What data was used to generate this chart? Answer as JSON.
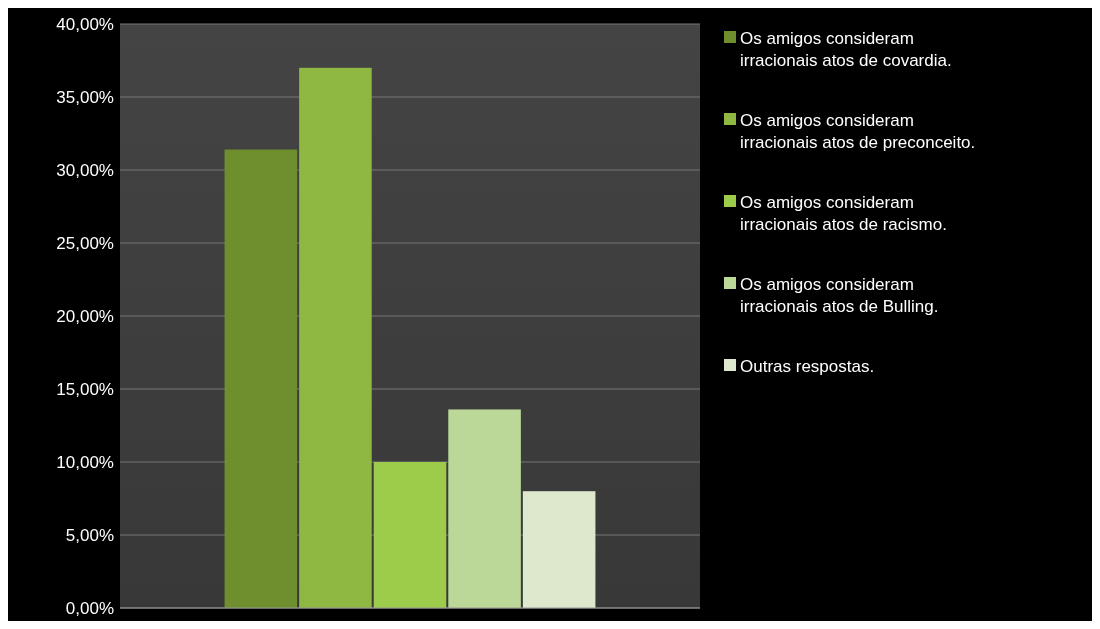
{
  "chart_data": {
    "type": "bar",
    "categories": [
      null
    ],
    "series": [
      {
        "name": "Os amigos consideram irracionais atos de covardia.",
        "color": "#6f8f2e",
        "values": [
          31.4
        ]
      },
      {
        "name": "Os amigos consideram irracionais atos de preconceito.",
        "color": "#8fb842",
        "values": [
          37.0
        ]
      },
      {
        "name": "Os amigos consideram irracionais atos de racismo.",
        "color": "#9ccc4a",
        "values": [
          10.0
        ]
      },
      {
        "name": "Os amigos consideram irracionais atos de Bulling.",
        "color": "#bcd898",
        "values": [
          13.6
        ]
      },
      {
        "name": "Outras respostas.",
        "color": "#dde8cc",
        "values": [
          8.0
        ]
      }
    ],
    "ylim": [
      0,
      40
    ],
    "yticks": [
      {
        "value": 0,
        "label": "0,00%"
      },
      {
        "value": 5,
        "label": "5,00%"
      },
      {
        "value": 10,
        "label": "10,00%"
      },
      {
        "value": 15,
        "label": "15,00%"
      },
      {
        "value": 20,
        "label": "20,00%"
      },
      {
        "value": 25,
        "label": "25,00%"
      },
      {
        "value": 30,
        "label": "30,00%"
      },
      {
        "value": 35,
        "label": "35,00%"
      },
      {
        "value": 40,
        "label": "40,00%"
      }
    ],
    "grid": "y",
    "legend": "right"
  }
}
